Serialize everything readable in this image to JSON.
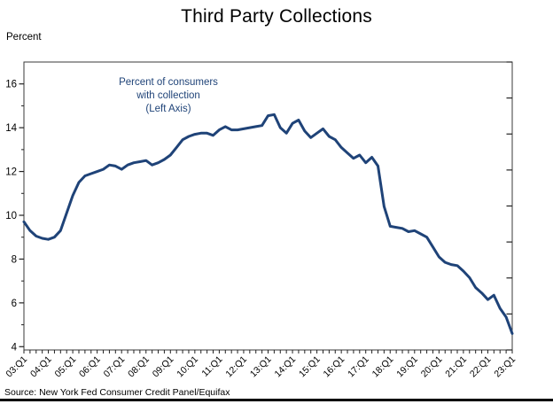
{
  "page": {
    "title": "Third Party Collections",
    "y_axis_unit": "Percent",
    "source": "Source: New York Fed Consumer Credit Panel/Equifax"
  },
  "annotation": {
    "line1": "Percent of consumers",
    "line2": "with collection",
    "line3": "(Left Axis)"
  },
  "colors": {
    "line": "#1F4378",
    "annotation_text": "#1F4378",
    "axis": "#3a3a3a",
    "tick": "#222222",
    "text": "#000000",
    "bottom_rule": "#000000"
  },
  "chart_data": {
    "type": "line",
    "title": "Third Party Collections",
    "ylabel": "Percent",
    "ylim": [
      3.85,
      17.0
    ],
    "y_ticks": [
      4,
      6,
      8,
      10,
      12,
      14,
      16
    ],
    "y_minor_ticks": [
      5,
      7,
      9,
      11,
      13,
      15
    ],
    "grid": false,
    "x_start": "03:Q1",
    "x_end": "23:Q1",
    "frequency": "quarterly",
    "x_tick_labels": [
      "03:Q1",
      "04:Q1",
      "05:Q1",
      "06:Q1",
      "07:Q1",
      "08:Q1",
      "09:Q1",
      "10:Q1",
      "11:Q1",
      "12:Q1",
      "13:Q1",
      "14:Q1",
      "15:Q1",
      "16:Q1",
      "17:Q1",
      "18:Q1",
      "19:Q1",
      "20:Q1",
      "21:Q1",
      "22:Q1",
      "23:Q1"
    ],
    "x_tick_label_rotation": 45,
    "legend_position": "annotation-inside-plot",
    "series": [
      {
        "name": "Percent of consumers with collection (Left Axis)",
        "values": [
          9.7,
          9.3,
          9.05,
          8.95,
          8.9,
          9.0,
          9.3,
          10.1,
          10.9,
          11.5,
          11.8,
          11.9,
          12.0,
          12.1,
          12.3,
          12.25,
          12.1,
          12.3,
          12.4,
          12.45,
          12.5,
          12.3,
          12.4,
          12.55,
          12.75,
          13.1,
          13.45,
          13.6,
          13.7,
          13.75,
          13.75,
          13.65,
          13.9,
          14.05,
          13.9,
          13.9,
          13.95,
          14.0,
          14.05,
          14.1,
          14.55,
          14.6,
          14.0,
          13.75,
          14.2,
          14.35,
          13.85,
          13.55,
          13.75,
          13.95,
          13.6,
          13.45,
          13.1,
          12.85,
          12.6,
          12.75,
          12.4,
          12.65,
          12.25,
          10.4,
          9.5,
          9.45,
          9.4,
          9.25,
          9.3,
          9.15,
          9.0,
          8.55,
          8.1,
          7.85,
          7.75,
          7.7,
          7.45,
          7.15,
          6.7,
          6.45,
          6.15,
          6.35,
          5.75,
          5.35,
          4.6
        ]
      }
    ],
    "source": "Source: New York Fed Consumer Credit Panel/Equifax"
  }
}
